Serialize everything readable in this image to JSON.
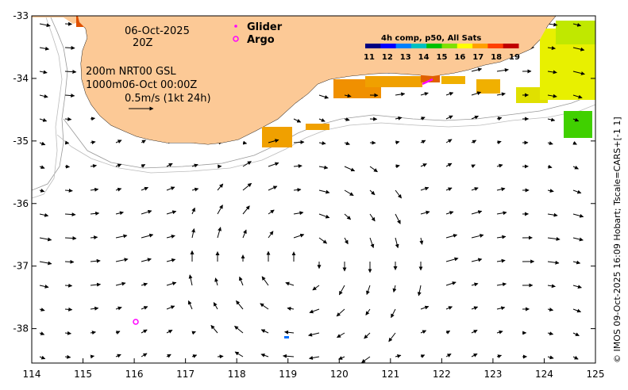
{
  "header": {
    "date": "06-Oct-2025",
    "time": "20Z",
    "depth_line": "200m  NRT00 GSL",
    "depth2_line": "1000m06-Oct 00:00Z",
    "scale_label": "0.5m/s (1kt 24h)"
  },
  "legend": {
    "glider_label": "Glider",
    "argo_label": "Argo",
    "glider_color": "#ff00ff",
    "argo_color": "#ff00ff"
  },
  "colorbar": {
    "title": "4h comp, p50, All Sats",
    "ticks": [
      "11",
      "12",
      "13",
      "14",
      "15",
      "16",
      "17",
      "18",
      "19"
    ],
    "colors": [
      "#000080",
      "#0000ff",
      "#0080ff",
      "#00c0c0",
      "#00c000",
      "#80e000",
      "#ffff00",
      "#ffa000",
      "#ff4000",
      "#c00000"
    ]
  },
  "axes": {
    "x_ticks": [
      "114",
      "115",
      "116",
      "117",
      "118",
      "119",
      "120",
      "121",
      "122",
      "123",
      "124",
      "125"
    ],
    "y_ticks": [
      "-33",
      "-34",
      "-35",
      "-36",
      "-37",
      "-38"
    ],
    "x_range": [
      114,
      125
    ],
    "y_range": [
      -38.55,
      -33
    ]
  },
  "land_color": "#fcc996",
  "credit": "© IMOS 09-Oct-2025 16:09 Hobart; Tscale=CARS+[-1 1]"
}
